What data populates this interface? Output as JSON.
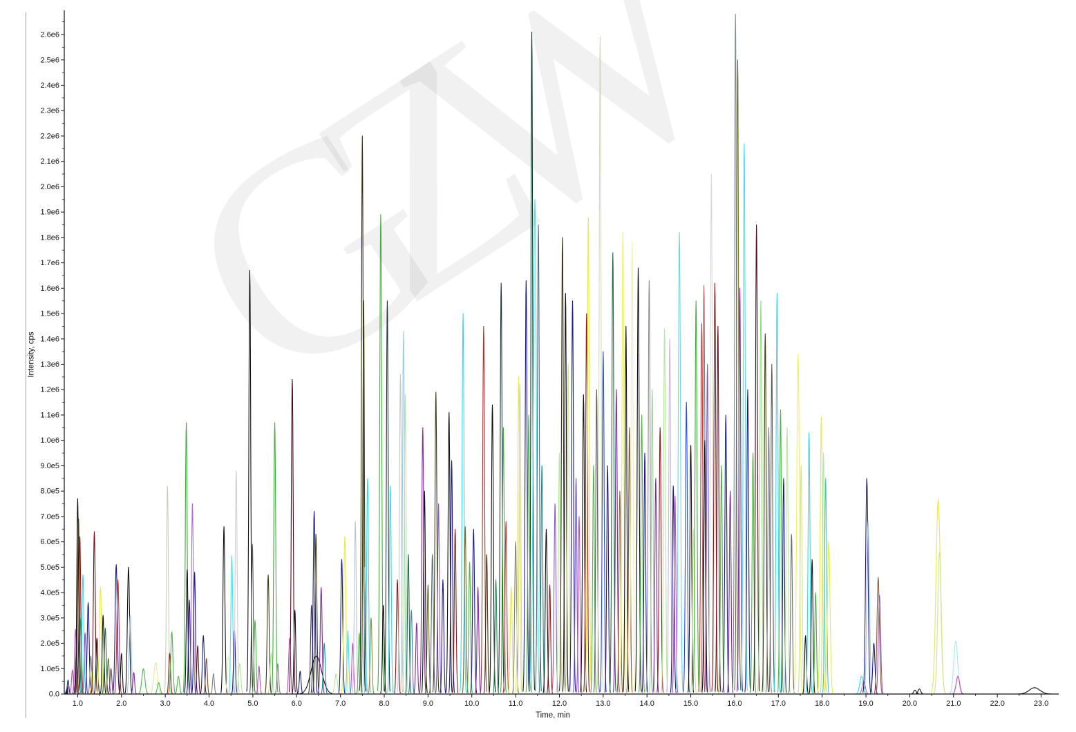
{
  "page": {
    "background": "#ffffff"
  },
  "watermark": {
    "text": "GZW"
  },
  "chart_data": {
    "type": "line",
    "title": "",
    "xlabel": "Time, min",
    "ylabel": "Intensity, cps",
    "xlim": [
      0.7,
      23.45
    ],
    "ylim": [
      0,
      2700000
    ],
    "grid": false,
    "legend": "none",
    "x_tick_labels": [
      "1.0",
      "2.0",
      "3.0",
      "4.0",
      "5.0",
      "6.0",
      "7.0",
      "8.0",
      "9.0",
      "10.0",
      "11.0",
      "12.0",
      "13.0",
      "14.0",
      "15.0",
      "16.0",
      "17.0",
      "18.0",
      "19.0",
      "20.0",
      "21.0",
      "22.0",
      "23.0"
    ],
    "y_tick_step": 100000,
    "y_tick_labels": [
      "0.0",
      "1.0e5",
      "2.0e5",
      "3.0e5",
      "4.0e5",
      "5.0e5",
      "6.0e5",
      "7.0e5",
      "8.0e5",
      "9.0e5",
      "1.0e6",
      "1.1e6",
      "1.2e6",
      "1.3e6",
      "1.4e6",
      "1.5e6",
      "1.6e6",
      "1.7e6",
      "1.8e6",
      "1.9e6",
      "2.0e6",
      "2.1e6",
      "2.2e6",
      "2.3e6",
      "2.4e6",
      "2.5e6",
      "2.6e6"
    ],
    "origin_marker": {
      "time": 0.78,
      "color": "#15155e"
    },
    "peaks": [
      [
        0.78,
        55000,
        "#1a1a8c",
        0.018
      ],
      [
        0.88,
        95000,
        "#c04ac0",
        0.02
      ],
      [
        0.95,
        255000,
        "#c04ac0",
        0.022
      ],
      [
        0.97,
        160000,
        "#7a2a9a",
        0.02
      ],
      [
        1.0,
        770000,
        "#101010",
        0.02
      ],
      [
        1.02,
        690000,
        "#3b3b16",
        0.02
      ],
      [
        1.05,
        620000,
        "#8a1a1a",
        0.02
      ],
      [
        1.07,
        300000,
        "#2e8b57",
        0.02
      ],
      [
        1.12,
        470000,
        "#35d8e8",
        0.022
      ],
      [
        1.17,
        240000,
        "#6a5acd",
        0.02
      ],
      [
        1.24,
        360000,
        "#1a1a8c",
        0.022
      ],
      [
        1.3,
        150000,
        "#808080",
        0.02
      ],
      [
        1.33,
        90000,
        "#e8e84a",
        0.02
      ],
      [
        1.38,
        640000,
        "#6a1020",
        0.022
      ],
      [
        1.44,
        220000,
        "#101010",
        0.02
      ],
      [
        1.52,
        420000,
        "#e8e84a",
        0.025
      ],
      [
        1.58,
        310000,
        "#101010",
        0.02
      ],
      [
        1.63,
        260000,
        "#1f6a3a",
        0.022
      ],
      [
        1.7,
        140000,
        "#6b6b2a",
        0.02
      ],
      [
        1.76,
        100000,
        "#7a2a9a",
        0.02
      ],
      [
        1.88,
        510000,
        "#1a1a8c",
        0.025
      ],
      [
        1.92,
        450000,
        "#c23838",
        0.025
      ],
      [
        2.0,
        160000,
        "#101010",
        0.02
      ],
      [
        2.16,
        500000,
        "#101010",
        0.025
      ],
      [
        2.2,
        310000,
        "#9ac8e8",
        0.025
      ],
      [
        2.28,
        85000,
        "#7a2a9a",
        0.02
      ],
      [
        2.5,
        100000,
        "#4cb648",
        0.035
      ],
      [
        2.78,
        125000,
        "#e4e4a8",
        0.04
      ],
      [
        2.85,
        45000,
        "#4cb648",
        0.03
      ],
      [
        3.05,
        820000,
        "#c8ccc0",
        0.022
      ],
      [
        3.1,
        160000,
        "#8a1a1a",
        0.02
      ],
      [
        3.15,
        245000,
        "#4cb648",
        0.025
      ],
      [
        3.3,
        70000,
        "#4cb648",
        0.025
      ],
      [
        3.48,
        1070000,
        "#3fae3a",
        0.022
      ],
      [
        3.5,
        490000,
        "#101010",
        0.02
      ],
      [
        3.55,
        370000,
        "#1a1a8c",
        0.02
      ],
      [
        3.62,
        750000,
        "#b06ad0",
        0.022
      ],
      [
        3.67,
        480000,
        "#1a1a8c",
        0.02
      ],
      [
        3.74,
        190000,
        "#6a1020",
        0.02
      ],
      [
        3.87,
        230000,
        "#1a1a8c",
        0.022
      ],
      [
        3.94,
        140000,
        "#7a4a2a",
        0.02
      ],
      [
        4.1,
        80000,
        "#808080",
        0.02
      ],
      [
        4.34,
        660000,
        "#101010",
        0.022
      ],
      [
        4.44,
        150000,
        "#eef0b0",
        0.025
      ],
      [
        4.52,
        545000,
        "#4adeee",
        0.022
      ],
      [
        4.58,
        250000,
        "#1a1a8c",
        0.02
      ],
      [
        4.62,
        880000,
        "#cdd0c8",
        0.022
      ],
      [
        4.7,
        120000,
        "#b4e6a0",
        0.025
      ],
      [
        4.93,
        1670000,
        "#101010",
        0.022
      ],
      [
        4.99,
        590000,
        "#5a5a5a",
        0.02
      ],
      [
        5.05,
        290000,
        "#4cb648",
        0.022
      ],
      [
        5.14,
        110000,
        "#c04ac0",
        0.02
      ],
      [
        5.35,
        470000,
        "#3b3b16",
        0.022
      ],
      [
        5.42,
        160000,
        "#b4e6a0",
        0.025
      ],
      [
        5.5,
        1070000,
        "#3fae3a",
        0.022
      ],
      [
        5.57,
        120000,
        "#808080",
        0.02
      ],
      [
        5.84,
        220000,
        "#c04ac0",
        0.022
      ],
      [
        5.9,
        1240000,
        "#4a0818",
        0.022
      ],
      [
        5.96,
        330000,
        "#101010",
        0.02
      ],
      [
        6.08,
        90000,
        "#1a1a8c",
        0.02
      ],
      [
        6.34,
        350000,
        "#3a3a3a",
        0.022
      ],
      [
        6.4,
        720000,
        "#1a1a8c",
        0.022
      ],
      [
        6.44,
        630000,
        "#3b3b16",
        0.022
      ],
      [
        6.45,
        150000,
        "#101010",
        0.12
      ],
      [
        6.56,
        420000,
        "#7a2a9a",
        0.022
      ],
      [
        6.63,
        200000,
        "#1f8a8a",
        0.022
      ],
      [
        6.9,
        80000,
        "#b4e6a0",
        0.03
      ],
      [
        7.03,
        530000,
        "#1a1a8c",
        0.022
      ],
      [
        7.1,
        620000,
        "#e8e84a",
        0.025
      ],
      [
        7.17,
        250000,
        "#4adeee",
        0.02
      ],
      [
        7.28,
        200000,
        "#c04ac0",
        0.02
      ],
      [
        7.34,
        680000,
        "#b8c4d4",
        0.022
      ],
      [
        7.43,
        240000,
        "#4cb648",
        0.02
      ],
      [
        7.5,
        2200000,
        "#2f2f10",
        0.02
      ],
      [
        7.53,
        1550000,
        "#3b3b16",
        0.018
      ],
      [
        7.56,
        500000,
        "#9ac8e8",
        0.02
      ],
      [
        7.62,
        850000,
        "#35d8e8",
        0.022
      ],
      [
        7.7,
        300000,
        "#8a8a3a",
        0.02
      ],
      [
        7.92,
        1890000,
        "#3fae3a",
        0.022
      ],
      [
        7.98,
        350000,
        "#101010",
        0.02
      ],
      [
        8.07,
        1550000,
        "#23333a",
        0.02
      ],
      [
        8.14,
        820000,
        "#35d8e8",
        0.02
      ],
      [
        8.3,
        450000,
        "#8a1a1a",
        0.022
      ],
      [
        8.37,
        1260000,
        "#c4c8c4",
        0.022
      ],
      [
        8.44,
        1430000,
        "#9ac8e8",
        0.022
      ],
      [
        8.48,
        1180000,
        "#b4e6a0",
        0.02
      ],
      [
        8.55,
        550000,
        "#1f6a3a",
        0.02
      ],
      [
        8.62,
        330000,
        "#4a7ba6",
        0.02
      ],
      [
        8.74,
        280000,
        "#7a2a9a",
        0.02
      ],
      [
        8.88,
        1050000,
        "#7a2a9a",
        0.022
      ],
      [
        8.92,
        800000,
        "#101010",
        0.02
      ],
      [
        9.0,
        430000,
        "#6b6b2a",
        0.02
      ],
      [
        9.1,
        550000,
        "#5a6a7a",
        0.022
      ],
      [
        9.18,
        1190000,
        "#3b3b16",
        0.022
      ],
      [
        9.24,
        750000,
        "#8a5ac2",
        0.02
      ],
      [
        9.34,
        450000,
        "#1a1a8c",
        0.02
      ],
      [
        9.48,
        1110000,
        "#101010",
        0.022
      ],
      [
        9.54,
        920000,
        "#1a1a8c",
        0.02
      ],
      [
        9.62,
        650000,
        "#8a1a1a",
        0.02
      ],
      [
        9.8,
        1500000,
        "#35d8e8",
        0.022
      ],
      [
        9.85,
        660000,
        "#6b6b2a",
        0.02
      ],
      [
        9.95,
        520000,
        "#4cb648",
        0.02
      ],
      [
        10.04,
        650000,
        "#1a1a8c",
        0.022
      ],
      [
        10.14,
        420000,
        "#7a2a9a",
        0.02
      ],
      [
        10.27,
        1450000,
        "#b03030",
        0.022
      ],
      [
        10.34,
        550000,
        "#3b3b16",
        0.02
      ],
      [
        10.47,
        1140000,
        "#101010",
        0.022
      ],
      [
        10.55,
        450000,
        "#2e8b57",
        0.02
      ],
      [
        10.67,
        1620000,
        "#23333a",
        0.022
      ],
      [
        10.72,
        1050000,
        "#3fae3a",
        0.02
      ],
      [
        10.78,
        680000,
        "#c23838",
        0.02
      ],
      [
        10.9,
        420000,
        "#e8e84a",
        0.022
      ],
      [
        11.0,
        600000,
        "#808080",
        0.022
      ],
      [
        11.07,
        1250000,
        "#e8e84a",
        0.022
      ],
      [
        11.1,
        1220000,
        "#d0d4cc",
        0.02
      ],
      [
        11.24,
        1630000,
        "#1a1a8c",
        0.022
      ],
      [
        11.3,
        1100000,
        "#4cb648",
        0.02
      ],
      [
        11.37,
        2610000,
        "#083828",
        0.02
      ],
      [
        11.44,
        1950000,
        "#4adeee",
        0.035
      ],
      [
        11.52,
        1850000,
        "#5a6a7a",
        0.022
      ],
      [
        11.6,
        900000,
        "#1f8a8a",
        0.02
      ],
      [
        11.7,
        650000,
        "#101010",
        0.022
      ],
      [
        11.78,
        430000,
        "#8a1a1a",
        0.02
      ],
      [
        11.9,
        750000,
        "#8a5ac2",
        0.022
      ],
      [
        12.0,
        950000,
        "#b4e6a0",
        0.022
      ],
      [
        12.07,
        1800000,
        "#3a2f14",
        0.022
      ],
      [
        12.14,
        1580000,
        "#101010",
        0.02
      ],
      [
        12.2,
        1300000,
        "#cfe09a",
        0.02
      ],
      [
        12.3,
        1550000,
        "#1a1a8c",
        0.022
      ],
      [
        12.38,
        850000,
        "#6a5acd",
        0.02
      ],
      [
        12.45,
        700000,
        "#c04ac0",
        0.02
      ],
      [
        12.55,
        1180000,
        "#101010",
        0.022
      ],
      [
        12.62,
        1500000,
        "#8a1a1a",
        0.02
      ],
      [
        12.66,
        1880000,
        "#e8e84a",
        0.022
      ],
      [
        12.78,
        900000,
        "#4cb648",
        0.02
      ],
      [
        12.85,
        1200000,
        "#5a5a5a",
        0.02
      ],
      [
        12.93,
        2590000,
        "#d4d8c0",
        0.022
      ],
      [
        13.0,
        1350000,
        "#2a4ad0",
        0.022
      ],
      [
        13.1,
        900000,
        "#2a1a6a",
        0.02
      ],
      [
        13.22,
        1740000,
        "#1f6a3a",
        0.022
      ],
      [
        13.3,
        1200000,
        "#7a2a9a",
        0.022
      ],
      [
        13.38,
        800000,
        "#9a5a3a",
        0.02
      ],
      [
        13.45,
        1820000,
        "#f0f060",
        0.022
      ],
      [
        13.52,
        1450000,
        "#101010",
        0.02
      ],
      [
        13.6,
        1050000,
        "#8a5a2a",
        0.02
      ],
      [
        13.66,
        1780000,
        "#eef0b0",
        0.022
      ],
      [
        13.8,
        1680000,
        "#101010",
        0.022
      ],
      [
        13.88,
        1100000,
        "#4cb648",
        0.02
      ],
      [
        13.95,
        950000,
        "#1a1a8c",
        0.02
      ],
      [
        14.05,
        1630000,
        "#8c8c8c",
        0.022
      ],
      [
        14.12,
        1200000,
        "#9fcf9f",
        0.02
      ],
      [
        14.2,
        850000,
        "#7a2a9a",
        0.02
      ],
      [
        14.3,
        1050000,
        "#8a1a1a",
        0.022
      ],
      [
        14.4,
        1440000,
        "#b4e6a0",
        0.022
      ],
      [
        14.52,
        1400000,
        "#c8b8d8",
        0.022
      ],
      [
        14.6,
        820000,
        "#1a1a8c",
        0.02
      ],
      [
        14.64,
        780000,
        "#c04ac0",
        0.02
      ],
      [
        14.74,
        1820000,
        "#6ad4e8",
        0.025
      ],
      [
        14.9,
        1150000,
        "#2a4ad0",
        0.022
      ],
      [
        15.0,
        980000,
        "#101010",
        0.02
      ],
      [
        15.06,
        650000,
        "#cfe09a",
        0.02
      ],
      [
        15.12,
        1550000,
        "#3fae3a",
        0.022
      ],
      [
        15.25,
        1460000,
        "#c23838",
        0.022
      ],
      [
        15.3,
        1610000,
        "#a86868",
        0.022
      ],
      [
        15.32,
        1000000,
        "#101010",
        0.02
      ],
      [
        15.38,
        1300000,
        "#6a5acd",
        0.02
      ],
      [
        15.47,
        2050000,
        "#d8d8d0",
        0.022
      ],
      [
        15.55,
        1620000,
        "#8a1a1a",
        0.022
      ],
      [
        15.62,
        1450000,
        "#6a1020",
        0.02
      ],
      [
        15.7,
        900000,
        "#4cb648",
        0.02
      ],
      [
        15.8,
        1100000,
        "#1a1a8c",
        0.022
      ],
      [
        15.9,
        800000,
        "#7a2a9a",
        0.02
      ],
      [
        16.02,
        2680000,
        "#7a8a9a",
        0.02
      ],
      [
        16.07,
        2500000,
        "#6b6b2a",
        0.022
      ],
      [
        16.12,
        1600000,
        "#7a2a9a",
        0.02
      ],
      [
        16.22,
        2170000,
        "#4adeee",
        0.022
      ],
      [
        16.3,
        1200000,
        "#1a1a8c",
        0.02
      ],
      [
        16.42,
        950000,
        "#4cb648",
        0.02
      ],
      [
        16.5,
        1850000,
        "#4a0818",
        0.022
      ],
      [
        16.6,
        1550000,
        "#8ede7a",
        0.022
      ],
      [
        16.7,
        1420000,
        "#3b3b16",
        0.022
      ],
      [
        16.78,
        1050000,
        "#808080",
        0.02
      ],
      [
        16.85,
        1300000,
        "#5a5a5a",
        0.02
      ],
      [
        16.97,
        1580000,
        "#35d8e8",
        0.022
      ],
      [
        17.05,
        1120000,
        "#4cb648",
        0.02
      ],
      [
        17.12,
        850000,
        "#1a1a8c",
        0.02
      ],
      [
        17.2,
        1050000,
        "#b4e6a0",
        0.022
      ],
      [
        17.3,
        630000,
        "#6a6a6a",
        0.02
      ],
      [
        17.45,
        1340000,
        "#f0f060",
        0.03
      ],
      [
        17.52,
        900000,
        "#cfe09a",
        0.022
      ],
      [
        17.62,
        230000,
        "#101010",
        0.02
      ],
      [
        17.7,
        1030000,
        "#35d8e8",
        0.022
      ],
      [
        17.77,
        530000,
        "#101010",
        0.02
      ],
      [
        17.85,
        400000,
        "#4cb648",
        0.02
      ],
      [
        17.98,
        1090000,
        "#e8e84a",
        0.025
      ],
      [
        18.03,
        950000,
        "#b4e6a0",
        0.022
      ],
      [
        18.08,
        850000,
        "#40c8b8",
        0.022
      ],
      [
        18.15,
        600000,
        "#e8e84a",
        0.03
      ],
      [
        18.9,
        70000,
        "#35d8e8",
        0.04
      ],
      [
        18.95,
        50000,
        "#b06ad0",
        0.035
      ],
      [
        19.02,
        850000,
        "#2a1a6a",
        0.028
      ],
      [
        19.05,
        680000,
        "#9ac8e8",
        0.03
      ],
      [
        19.18,
        200000,
        "#1a1a8c",
        0.025
      ],
      [
        19.28,
        460000,
        "#9a5a3a",
        0.028
      ],
      [
        19.31,
        390000,
        "#8a5ac2",
        0.026
      ],
      [
        20.12,
        15000,
        "#101010",
        0.03
      ],
      [
        20.22,
        20000,
        "#101010",
        0.03
      ],
      [
        20.65,
        770000,
        "#e8e858",
        0.05
      ],
      [
        20.68,
        560000,
        "#cfe09a",
        0.04
      ],
      [
        21.05,
        210000,
        "#a8e8e8",
        0.045
      ],
      [
        21.1,
        70000,
        "#c04ac0",
        0.04
      ],
      [
        22.85,
        25000,
        "#101010",
        0.12
      ]
    ]
  }
}
